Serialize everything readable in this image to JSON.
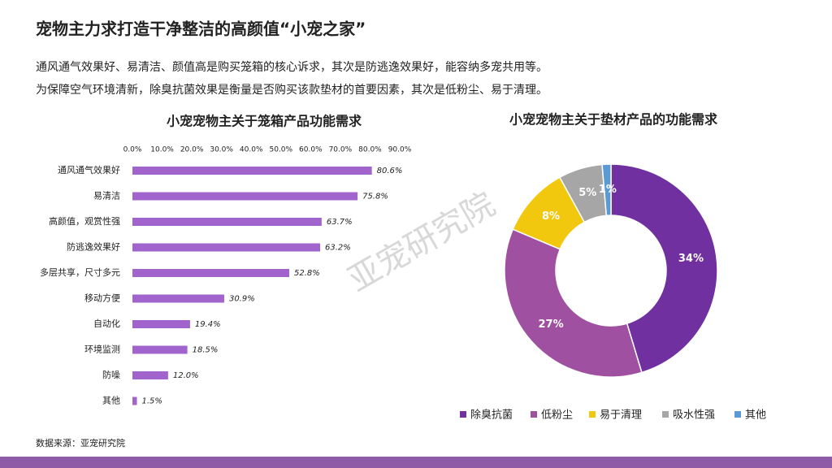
{
  "title": "宠物主力求打造干净整洁的高颜值“小宠之家”",
  "subtitle": [
    "通风通气效果好、易清洁、颜值高是购买笼箱的核心诉求，其次是防逃逸效果好，能容纳多宠共用等。",
    "为保障空气环境清新，除臭抗菌效果是衡量是否购买该款垫材的首要因素，其次是低粉尘、易于清理。"
  ],
  "source": "数据来源：亚宠研究院",
  "watermark": "亚宠研究院",
  "chart_data": [
    {
      "type": "bar",
      "orientation": "horizontal",
      "title": "小宠宠物主关于笼箱产品功能需求",
      "categories": [
        "通风通气效果好",
        "易清洁",
        "高颜值，观赏性强",
        "防逃逸效果好",
        "多层共享，尺寸多元",
        "移动方便",
        "自动化",
        "环境监测",
        "防噪",
        "其他"
      ],
      "values": [
        80.6,
        75.8,
        63.7,
        63.2,
        52.8,
        30.9,
        19.4,
        18.5,
        12.0,
        1.5
      ],
      "value_labels": [
        "80.6%",
        "75.8%",
        "63.7%",
        "63.2%",
        "52.8%",
        "30.9%",
        "19.4%",
        "18.5%",
        "12.0%",
        "1.5%"
      ],
      "color": "#a064cc",
      "xlim": [
        0,
        90
      ],
      "xticks": [
        {
          "value": 0,
          "label": "0.0%"
        },
        {
          "value": 10,
          "label": "10.0%"
        },
        {
          "value": 20,
          "label": "20.0%"
        },
        {
          "value": 30,
          "label": "30.0%"
        },
        {
          "value": 40,
          "label": "40.0%"
        },
        {
          "value": 50,
          "label": "50.0%"
        },
        {
          "value": 60,
          "label": "60.0%"
        },
        {
          "value": 70,
          "label": "70.0%"
        },
        {
          "value": 80,
          "label": "80.0%"
        },
        {
          "value": 90,
          "label": "90.0%"
        }
      ]
    },
    {
      "type": "donut",
      "title": "小宠宠物主关于垫材产品的功能需求",
      "categories": [
        "除臭抗菌",
        "低粉尘",
        "易于清理",
        "吸水性强",
        "其他"
      ],
      "values": [
        34,
        27,
        8,
        5,
        1
      ],
      "value_labels": [
        "34%",
        "27%",
        "8%",
        "5%",
        "1%"
      ],
      "colors": [
        "#7030a0",
        "#a050a0",
        "#f2c80f",
        "#a6a6a6",
        "#5b9bd5"
      ],
      "legend": "bottom"
    }
  ]
}
